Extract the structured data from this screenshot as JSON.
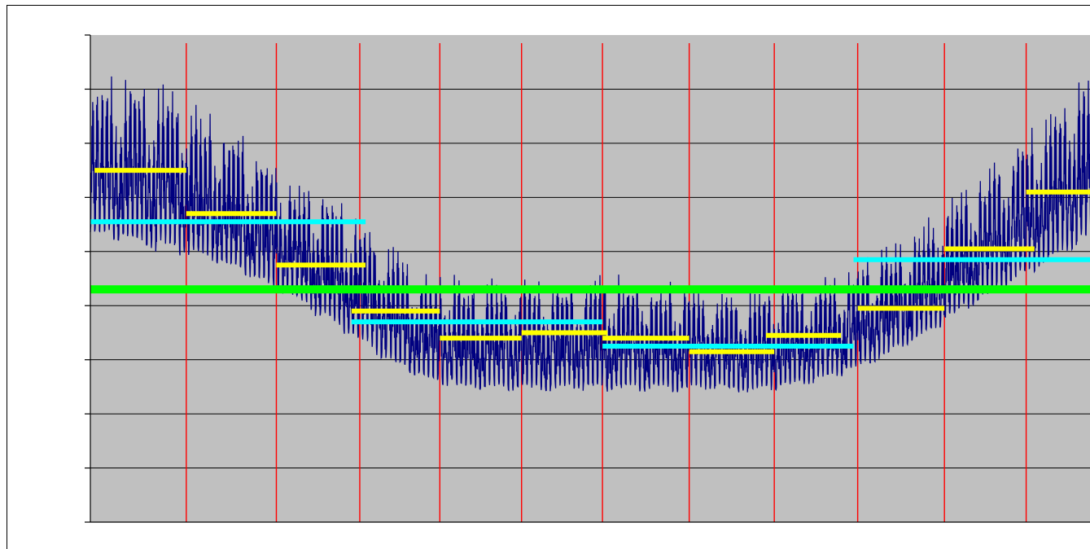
{
  "chart_data": {
    "type": "line",
    "title": "",
    "xlabel": "",
    "ylabel": "",
    "x_range": [
      0,
      12.2
    ],
    "y_range": [
      0,
      9
    ],
    "grid": {
      "horizontal": true,
      "vertical": true
    },
    "legend": "none",
    "colors": {
      "plot_background": "#c0c0c0",
      "chart_border": "#000000",
      "gridline": "#000000",
      "month_divider": "#ff0000",
      "load_series": "#000080",
      "monthly_average": "#ffff00",
      "seasonal_average": "#00ffff",
      "annual_average": "#00ff00"
    },
    "month_dividers": [
      1.15,
      2.23,
      3.23,
      4.19,
      5.17,
      6.14,
      7.18,
      8.2,
      9.2,
      10.24,
      11.22
    ],
    "load_envelope": {
      "x": [
        0,
        0.2,
        0.5,
        1,
        1.5,
        2,
        2.5,
        3,
        3.5,
        4,
        4.5,
        5,
        5.5,
        6,
        6.5,
        7,
        7.5,
        8,
        8.5,
        9,
        9.5,
        10,
        10.5,
        11,
        11.5,
        12,
        12.2
      ],
      "max": [
        8.0,
        8.3,
        8.4,
        8.0,
        7.5,
        7.0,
        6.4,
        6.0,
        5.3,
        4.65,
        4.55,
        4.5,
        4.5,
        4.6,
        4.6,
        4.5,
        4.3,
        4.4,
        4.5,
        4.7,
        5.1,
        5.6,
        6.2,
        6.9,
        7.7,
        8.5,
        8.0
      ],
      "min": [
        5.0,
        4.9,
        4.8,
        4.7,
        4.5,
        4.2,
        3.8,
        3.3,
        2.8,
        2.4,
        2.25,
        2.2,
        2.2,
        2.25,
        2.2,
        2.2,
        2.25,
        2.2,
        2.3,
        2.5,
        2.8,
        3.2,
        3.7,
        4.1,
        4.5,
        4.9,
        4.6
      ]
    },
    "series": [
      {
        "x_start": [
          0.05,
          1.15,
          2.23,
          3.13,
          4.19,
          5.17,
          6.14,
          7.18,
          8.1,
          9.2,
          10.24,
          11.22
        ],
        "x_end": [
          1.15,
          2.23,
          3.3,
          4.19,
          5.17,
          6.2,
          7.18,
          8.2,
          9.0,
          10.24,
          11.32,
          12.3
        ],
        "values": [
          6.5,
          5.7,
          4.75,
          3.9,
          3.4,
          3.5,
          3.4,
          3.15,
          3.45,
          3.95,
          5.05,
          6.1
        ]
      },
      {
        "x_start": [
          0,
          3.13,
          6.14,
          9.15
        ],
        "x_end": [
          3.3,
          6.14,
          9.15,
          12.3
        ],
        "values": [
          5.55,
          3.7,
          3.25,
          4.85
        ]
      },
      {
        "x_start": [
          0
        ],
        "x_end": [
          12.3
        ],
        "values": [
          4.3
        ]
      }
    ]
  }
}
